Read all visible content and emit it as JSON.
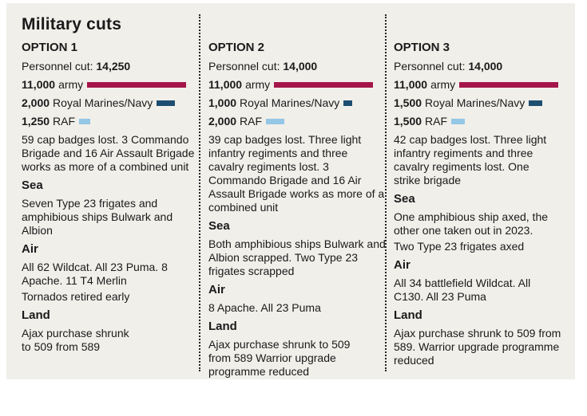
{
  "title": "Military cuts",
  "colors": {
    "army": "#a4154a",
    "navy": "#1d4e72",
    "raf": "#94c7e6"
  },
  "options": [
    {
      "name": "OPTION 1",
      "personnel_label": "Personnel cut:",
      "personnel_value": "14,250",
      "army_value": "11,000",
      "army_label": "army",
      "army": 11000,
      "navy_value": "2,000",
      "navy_label": "Royal Marines/Navy",
      "navy": 2000,
      "raf_value": "1,250",
      "raf_label": "RAF",
      "raf": 1250,
      "summary": "59 cap badges lost. 3 Commando Brigade and 16 Air Assault Brigade works as more of a combined unit",
      "sea_heading": "Sea",
      "sea": "Seven Type 23 frigates and amphibious ships Bulwark and Albion",
      "air_heading": "Air",
      "air": "All 62 Wildcat. All 23 Puma. 8 Apache. 11 T4 Merlin",
      "air2": "Tornados retired early",
      "land_heading": "Land",
      "land": "Ajax purchase shrunk to 509 from 589"
    },
    {
      "name": "OPTION 2",
      "personnel_label": "Personnel cut:",
      "personnel_value": "14,000",
      "army_value": "11,000",
      "army_label": "army",
      "army": 11000,
      "navy_value": "1,000",
      "navy_label": "Royal Marines/Navy",
      "navy": 1000,
      "raf_value": "2,000",
      "raf_label": "RAF",
      "raf": 2000,
      "summary": "39 cap badges lost. Three light infantry regiments and three cavalry regiments lost. 3 Commando Brigade and 16 Air Assault Brigade works as more of a combined unit",
      "sea_heading": "Sea",
      "sea": "Both amphibious ships Bulwark and Albion scrapped. Two Type 23 frigates scrapped",
      "air_heading": "Air",
      "air": "8 Apache. All 23 Puma",
      "air2": "",
      "land_heading": "Land",
      "land": "Ajax purchase shrunk to 509 from 589 Warrior upgrade programme reduced"
    },
    {
      "name": "OPTION 3",
      "personnel_label": "Personnel cut:",
      "personnel_value": "14,000",
      "army_value": "11,000",
      "army_label": "army",
      "army": 11000,
      "navy_value": "1,500",
      "navy_label": "Royal Marines/Navy",
      "navy": 1500,
      "raf_value": "1,500",
      "raf_label": "RAF",
      "raf": 1500,
      "summary": "42 cap badges lost. Three light infantry regiments and three cavalry regiments lost. One strike brigade",
      "sea_heading": "Sea",
      "sea": "One amphibious ship axed, the other one taken out in 2023.",
      "sea2": "Two Type 23 frigates axed",
      "air_heading": "Air",
      "air": "All 34 battlefield Wildcat. All C130. All 23 Puma",
      "air2": "",
      "land_heading": "Land",
      "land": "Ajax purchase shrunk to 509 from 589. Warrior upgrade programme reduced"
    }
  ]
}
